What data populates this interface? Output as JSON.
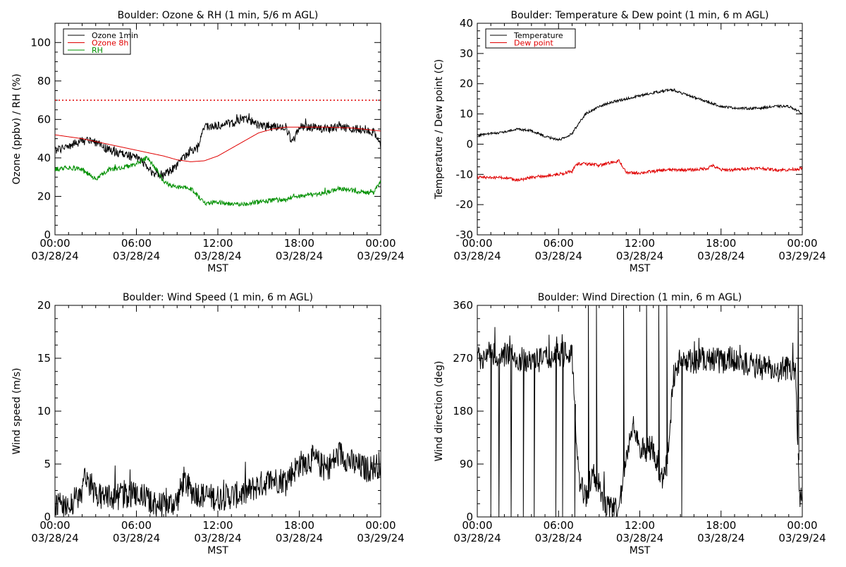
{
  "chart_data": [
    {
      "id": "ozone_rh",
      "type": "line",
      "title": "Boulder: Ozone & RH (1 min, 5/6 m AGL)",
      "xlabel": "MST",
      "ylabel": "Ozone (ppbv) / RH (%)",
      "x_ticks": [
        {
          "time": "00:00",
          "date": "03/28/24"
        },
        {
          "time": "06:00",
          "date": "03/28/24"
        },
        {
          "time": "12:00",
          "date": "03/28/24"
        },
        {
          "time": "18:00",
          "date": "03/28/24"
        },
        {
          "time": "00:00",
          "date": "03/29/24"
        }
      ],
      "xlim_hours": [
        0,
        24
      ],
      "ylim": [
        0,
        110
      ],
      "y_ticks": [
        0,
        20,
        40,
        60,
        80,
        100
      ],
      "legend": {
        "position": "top-left",
        "entries": [
          {
            "label": "Ozone 1min",
            "color": "#000000"
          },
          {
            "label": "Ozone 8h",
            "color": "#e00000"
          },
          {
            "label": "RH",
            "color": "#009000"
          }
        ]
      },
      "reference_lines": [
        {
          "y": 70,
          "style": "dotted",
          "color": "#e00000"
        }
      ],
      "series": [
        {
          "name": "Ozone 1min",
          "color": "#000000",
          "noise": 2.2,
          "x": [
            0,
            1,
            2,
            3,
            4,
            5,
            6,
            6.5,
            7,
            8,
            9,
            10,
            10.5,
            11,
            12,
            13,
            14,
            14.5,
            15,
            16,
            17,
            17.5,
            18,
            19,
            20,
            21,
            22,
            23,
            23.5,
            24
          ],
          "y": [
            44,
            46,
            49,
            48,
            44,
            42,
            40,
            38,
            33,
            31,
            36,
            44,
            45,
            56,
            57,
            58,
            60,
            59,
            57,
            56,
            56,
            48,
            56,
            56,
            55,
            56,
            55,
            55,
            53,
            46
          ]
        },
        {
          "name": "Ozone 8h",
          "color": "#e00000",
          "noise": 0,
          "x": [
            0,
            2,
            4,
            6,
            8,
            9,
            10,
            11,
            12,
            13,
            14,
            15,
            16,
            17,
            18,
            20,
            22,
            24
          ],
          "y": [
            52,
            50,
            47,
            44,
            41,
            39,
            38,
            38.5,
            41,
            45,
            49,
            53,
            55,
            56,
            56,
            56,
            55.5,
            54
          ]
        },
        {
          "name": "RH",
          "color": "#009000",
          "noise": 1.2,
          "x": [
            0,
            1,
            2,
            3,
            4,
            5,
            6,
            6.8,
            7.5,
            8,
            9,
            10,
            11,
            12,
            13,
            14,
            15,
            16,
            17,
            17.5,
            18,
            19,
            20,
            21,
            22,
            23,
            23.5,
            24
          ],
          "y": [
            34,
            35,
            34,
            29,
            34,
            35,
            37,
            40,
            34,
            27,
            25,
            24,
            17,
            17,
            16,
            16,
            17,
            18,
            18,
            20,
            20,
            21,
            22,
            24,
            23,
            22,
            22,
            28
          ]
        }
      ]
    },
    {
      "id": "temp_dew",
      "type": "line",
      "title": "Boulder: Temperature & Dew point (1 min, 6 m AGL)",
      "xlabel": "MST",
      "ylabel": "Temperature / Dew point (C)",
      "x_ticks": [
        {
          "time": "00:00",
          "date": "03/28/24"
        },
        {
          "time": "06:00",
          "date": "03/28/24"
        },
        {
          "time": "12:00",
          "date": "03/28/24"
        },
        {
          "time": "18:00",
          "date": "03/28/24"
        },
        {
          "time": "00:00",
          "date": "03/29/24"
        }
      ],
      "xlim_hours": [
        0,
        24
      ],
      "ylim": [
        -30,
        40
      ],
      "y_ticks": [
        -30,
        -20,
        -10,
        0,
        10,
        20,
        30,
        40
      ],
      "legend": {
        "position": "top-left",
        "entries": [
          {
            "label": "Temperature",
            "color": "#000000"
          },
          {
            "label": "Dew point",
            "color": "#e00000"
          }
        ]
      },
      "series": [
        {
          "name": "Temperature",
          "color": "#000000",
          "noise": 0.4,
          "x": [
            0,
            1,
            2,
            3,
            4,
            5,
            6,
            6.5,
            7,
            7.5,
            8,
            9,
            10,
            11,
            12,
            13,
            14,
            14.5,
            15,
            16,
            17,
            18,
            19,
            20,
            21,
            22,
            23,
            23.5,
            24
          ],
          "y": [
            3,
            3.5,
            4,
            5,
            4.5,
            2.5,
            1.5,
            2,
            3.5,
            7,
            10,
            12.5,
            14,
            15,
            16,
            17,
            17.8,
            18,
            17,
            15.5,
            14,
            12.5,
            12,
            11.8,
            12,
            12.5,
            12.5,
            11.5,
            10
          ]
        },
        {
          "name": "Dew point",
          "color": "#e00000",
          "noise": 0.5,
          "x": [
            0,
            1,
            2,
            3,
            4,
            5,
            6,
            7,
            7.3,
            8,
            9,
            10,
            10.5,
            11,
            12,
            13,
            14,
            15,
            16,
            17,
            17.3,
            18,
            19,
            20,
            21,
            22,
            23,
            24
          ],
          "y": [
            -11,
            -11,
            -11,
            -12,
            -11,
            -10.5,
            -10,
            -9,
            -6.5,
            -6.5,
            -7,
            -6,
            -5.5,
            -9.5,
            -9.5,
            -9,
            -8.5,
            -8.5,
            -8.5,
            -8,
            -7,
            -8.5,
            -8.5,
            -8,
            -8,
            -8.5,
            -8.5,
            -8
          ]
        }
      ]
    },
    {
      "id": "wind_speed",
      "type": "line",
      "title": "Boulder: Wind Speed (1 min, 6 m AGL)",
      "xlabel": "MST",
      "ylabel": "Wind speed (m/s)",
      "x_ticks": [
        {
          "time": "00:00",
          "date": "03/28/24"
        },
        {
          "time": "06:00",
          "date": "03/28/24"
        },
        {
          "time": "12:00",
          "date": "03/28/24"
        },
        {
          "time": "18:00",
          "date": "03/28/24"
        },
        {
          "time": "00:00",
          "date": "03/29/24"
        }
      ],
      "xlim_hours": [
        0,
        24
      ],
      "ylim": [
        0,
        20
      ],
      "y_ticks": [
        0,
        5,
        10,
        15,
        20
      ],
      "series": [
        {
          "name": "Wind speed",
          "color": "#000000",
          "noise": 1.3,
          "min": 0,
          "x": [
            0,
            1,
            2,
            2.1,
            3,
            4,
            5,
            6,
            7,
            8,
            9,
            9.5,
            10,
            11,
            12,
            13,
            14,
            15,
            16,
            17,
            18,
            19,
            20,
            21,
            22,
            23,
            24
          ],
          "y": [
            1.5,
            1.2,
            2,
            4.5,
            2,
            1.8,
            2,
            2.2,
            1.5,
            1,
            1.5,
            3.5,
            2.5,
            2,
            1.8,
            2,
            2.2,
            3,
            3.5,
            3.5,
            5,
            5.5,
            4.5,
            6,
            5,
            4.5,
            5
          ]
        }
      ]
    },
    {
      "id": "wind_dir",
      "type": "line",
      "title": "Boulder: Wind Direction (1 min, 6 m AGL)",
      "xlabel": "MST",
      "ylabel": "Wind direction (deg)",
      "x_ticks": [
        {
          "time": "00:00",
          "date": "03/28/24"
        },
        {
          "time": "06:00",
          "date": "03/28/24"
        },
        {
          "time": "12:00",
          "date": "03/28/24"
        },
        {
          "time": "18:00",
          "date": "03/28/24"
        },
        {
          "time": "00:00",
          "date": "03/29/24"
        }
      ],
      "xlim_hours": [
        0,
        24
      ],
      "ylim": [
        0,
        360
      ],
      "y_ticks": [
        0,
        90,
        180,
        270,
        360
      ],
      "series": [
        {
          "name": "Wind direction",
          "color": "#000000",
          "noise": 22,
          "min": 0,
          "max": 360,
          "x": [
            0,
            1,
            2,
            3,
            4,
            5,
            6,
            7,
            7.5,
            8,
            8.5,
            9,
            9.5,
            10,
            10.5,
            11,
            11.5,
            12,
            13,
            13.5,
            14,
            14.5,
            15,
            16,
            17,
            18,
            19,
            20,
            21,
            22,
            23,
            23.5,
            23.8,
            24
          ],
          "y": [
            270,
            280,
            275,
            270,
            265,
            270,
            275,
            280,
            60,
            30,
            80,
            40,
            20,
            10,
            20,
            100,
            170,
            110,
            120,
            60,
            90,
            240,
            270,
            265,
            270,
            265,
            270,
            260,
            255,
            250,
            255,
            250,
            20,
            40
          ],
          "spikes": [
            1.0,
            1.6,
            2.5,
            3.4,
            4.2,
            5.8,
            6.3,
            7.2,
            8.2,
            8.8,
            10.8,
            12.5,
            13.4,
            14.0,
            15.1,
            23.7
          ]
        }
      ]
    }
  ]
}
